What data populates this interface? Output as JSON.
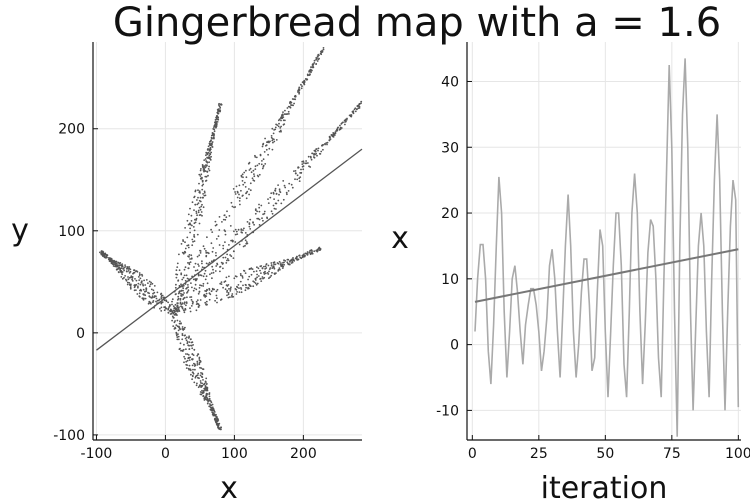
{
  "title": "Gingerbread map with a = 1.6",
  "chart_data": [
    {
      "type": "scatter",
      "xlabel": "x",
      "ylabel": "y",
      "xlim": [
        -105,
        285
      ],
      "ylim": [
        -105,
        285
      ],
      "xticks": [
        -100,
        0,
        100,
        200
      ],
      "yticks": [
        -100,
        0,
        100,
        200
      ],
      "grid": true,
      "legend": "none",
      "point_color": "#555555",
      "arms": [
        {
          "from": [
            10,
            20
          ],
          "to": [
            80,
            225
          ]
        },
        {
          "from": [
            10,
            20
          ],
          "to": [
            230,
            280
          ]
        },
        {
          "from": [
            10,
            20
          ],
          "to": [
            285,
            225
          ]
        },
        {
          "from": [
            10,
            20
          ],
          "to": [
            225,
            83
          ]
        },
        {
          "from": [
            10,
            20
          ],
          "to": [
            -95,
            80
          ]
        },
        {
          "from": [
            10,
            20
          ],
          "to": [
            80,
            -95
          ]
        }
      ],
      "trend_line": {
        "x": [
          -100,
          285
        ],
        "y": [
          -17,
          180
        ],
        "color": "#555555"
      }
    },
    {
      "type": "line",
      "xlabel": "iteration",
      "ylabel": "x",
      "xlim": [
        -2,
        101
      ],
      "ylim": [
        -14.5,
        46
      ],
      "xticks": [
        0,
        25,
        50,
        75,
        100
      ],
      "yticks": [
        -10,
        0,
        10,
        20,
        30,
        40
      ],
      "grid": true,
      "legend": "none",
      "series": [
        {
          "color": "#aaaaaa",
          "x": [
            1,
            2,
            3,
            4,
            5,
            6,
            7,
            8,
            9,
            10,
            11,
            12,
            13,
            14,
            15,
            16,
            17,
            18,
            19,
            20,
            21,
            22,
            23,
            24,
            25,
            26,
            27,
            28,
            29,
            30,
            31,
            32,
            33,
            34,
            35,
            36,
            37,
            38,
            39,
            40,
            41,
            42,
            43,
            44,
            45,
            46,
            47,
            48,
            49,
            50,
            51,
            52,
            53,
            54,
            55,
            56,
            57,
            58,
            59,
            60,
            61,
            62,
            63,
            64,
            65,
            66,
            67,
            68,
            69,
            70,
            71,
            72,
            73,
            74,
            75,
            76,
            77,
            78,
            79,
            80,
            81,
            82,
            83,
            84,
            85,
            86,
            87,
            88,
            89,
            90,
            91,
            92,
            93,
            94,
            95,
            96,
            97,
            98,
            99,
            100
          ],
          "y": [
            2,
            10,
            15.2,
            15.2,
            10,
            -1,
            -6,
            3,
            15,
            25.5,
            20,
            5,
            -5,
            2,
            10,
            12,
            8,
            2,
            -3,
            3,
            6,
            8.5,
            8.5,
            6,
            2,
            -4,
            -1,
            4,
            12,
            14.5,
            10,
            2,
            -5,
            5,
            15,
            22.8,
            15,
            2,
            -5,
            0,
            8,
            13,
            13,
            6,
            -4,
            -2,
            8,
            17.5,
            15,
            2,
            -8,
            2,
            12,
            20,
            20,
            12,
            -3,
            -8,
            5,
            20,
            26,
            20,
            5,
            -6,
            3,
            14,
            19,
            18,
            10,
            -2,
            -8,
            10,
            26,
            42.5,
            30,
            5,
            -14,
            15,
            35,
            43.5,
            30,
            5,
            -10,
            3,
            15,
            20,
            15,
            2,
            -8,
            10,
            25,
            35,
            25,
            5,
            -10,
            5,
            18,
            25,
            22,
            -9.5
          ]
        }
      ],
      "trend_line": {
        "x": [
          1,
          100
        ],
        "y": [
          6.5,
          14.5
        ],
        "color": "#777777"
      }
    }
  ]
}
